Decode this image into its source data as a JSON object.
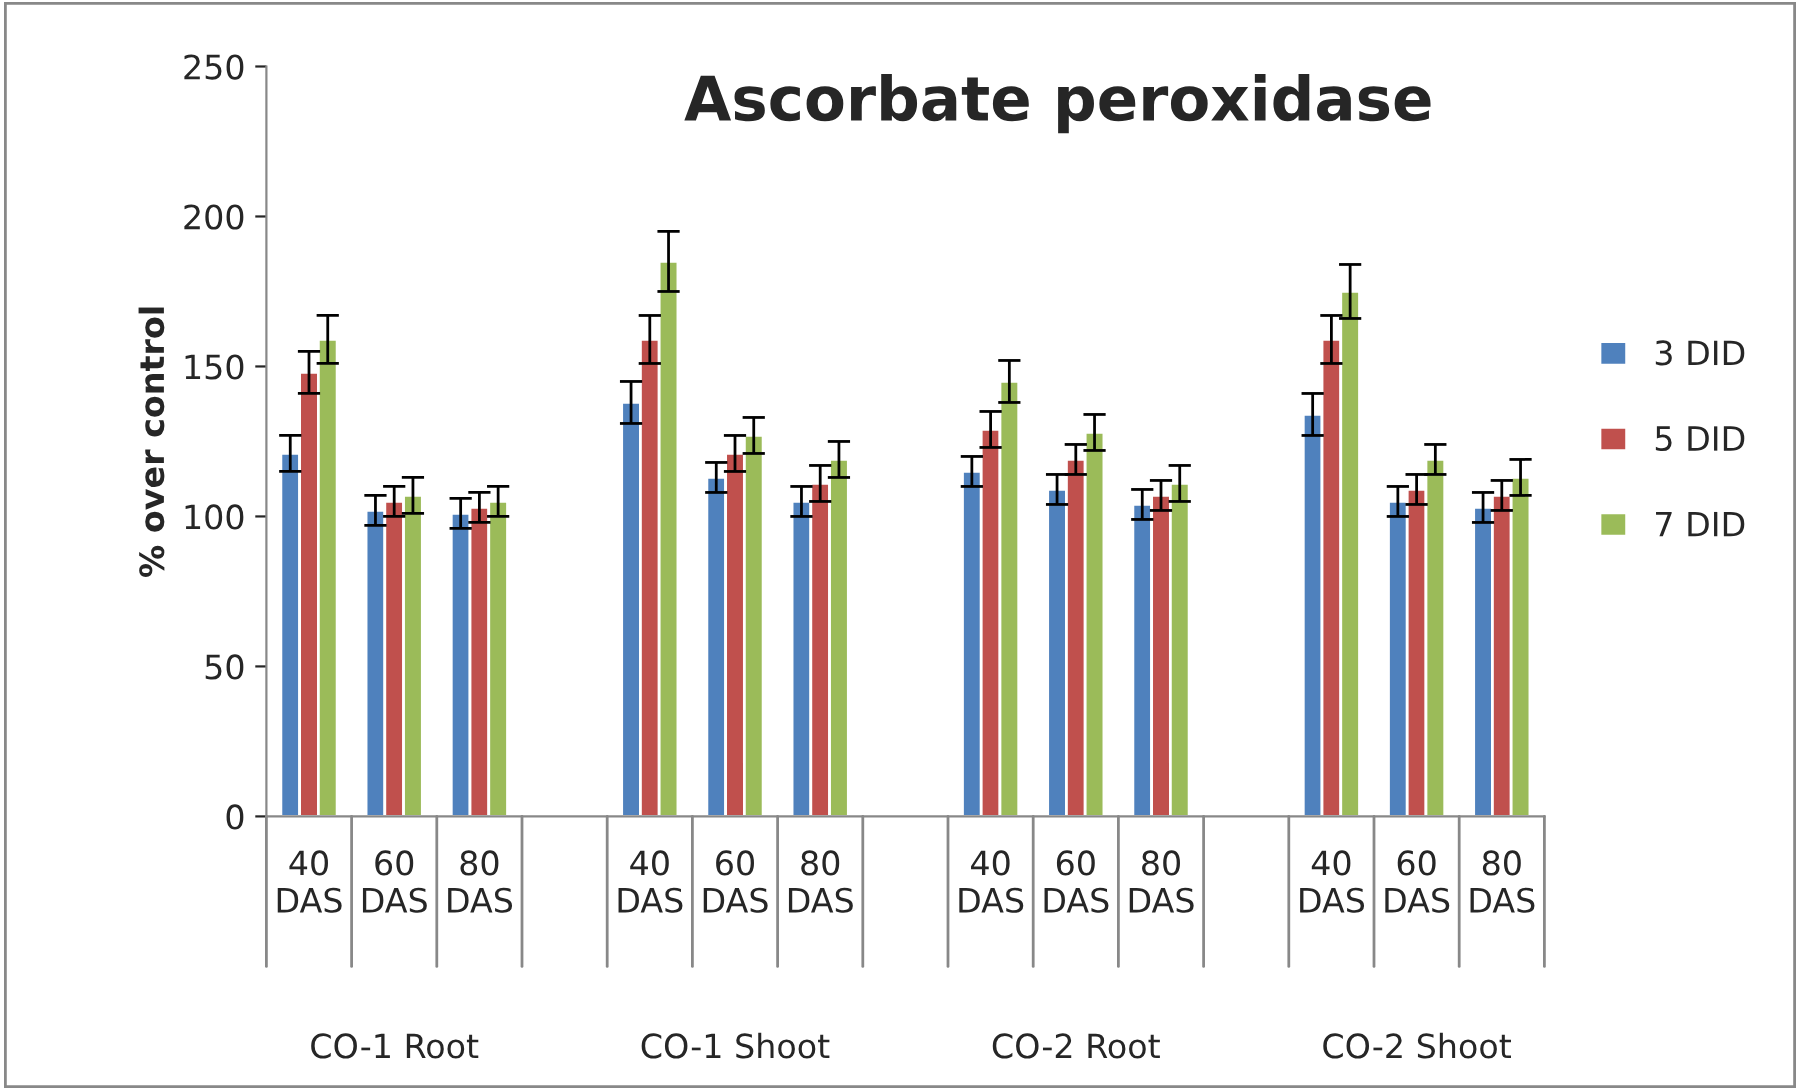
{
  "chart_data": {
    "type": "bar",
    "title": "Ascorbate peroxidase",
    "ylabel": "% over control",
    "categories": [
      "40 DAS",
      "60 DAS",
      "80 DAS",
      null,
      "40 DAS",
      "60 DAS",
      "80 DAS",
      null,
      "40 DAS",
      "60 DAS",
      "80 DAS",
      null,
      "40 DAS",
      "60 DAS",
      "80 DAS"
    ],
    "annotations": [
      "CO-1 Root",
      "CO-1 Shoot",
      "CO-2 Root",
      "CO-2 Shoot"
    ],
    "series": [
      {
        "name": "3 DID",
        "color": "#4f81bd",
        "values": [
          121,
          102,
          101,
          null,
          138,
          113,
          105,
          null,
          115,
          109,
          104,
          null,
          134,
          105,
          103
        ],
        "errors": [
          6,
          5,
          5,
          null,
          7,
          5,
          5,
          null,
          5,
          5,
          5,
          null,
          7,
          5,
          5
        ]
      },
      {
        "name": "5 DID",
        "color": "#c0504d",
        "values": [
          148,
          105,
          103,
          null,
          159,
          121,
          111,
          null,
          129,
          119,
          107,
          null,
          159,
          109,
          107
        ],
        "errors": [
          7,
          5,
          5,
          null,
          8,
          6,
          6,
          null,
          6,
          5,
          5,
          null,
          8,
          5,
          5
        ]
      },
      {
        "name": "7 DID",
        "color": "#9bbb59",
        "values": [
          159,
          107,
          105,
          null,
          185,
          127,
          119,
          null,
          145,
          128,
          111,
          null,
          175,
          119,
          113
        ],
        "errors": [
          8,
          6,
          5,
          null,
          10,
          6,
          6,
          null,
          7,
          6,
          6,
          null,
          9,
          5,
          6
        ]
      }
    ],
    "ylim": [
      0,
      250
    ],
    "yticks": [
      0,
      50,
      100,
      150,
      200,
      250
    ],
    "grid": false,
    "legend": "right"
  }
}
